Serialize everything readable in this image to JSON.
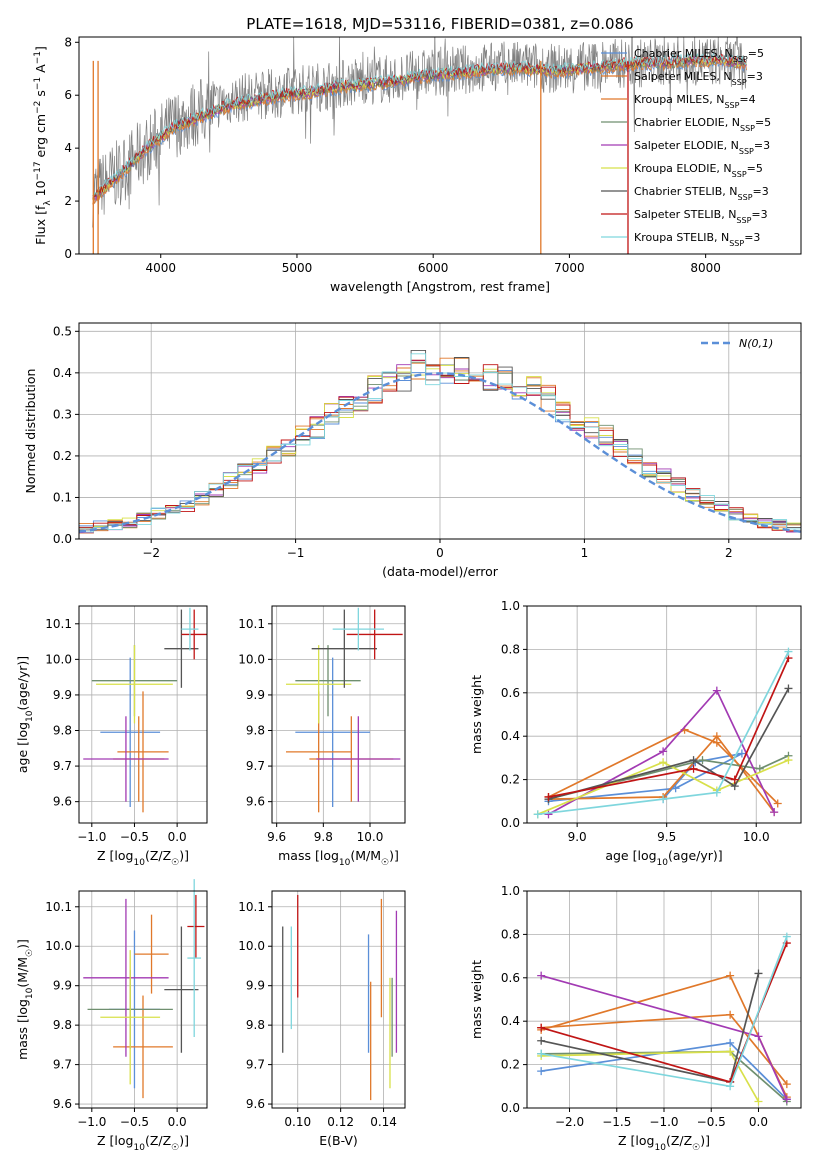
{
  "figure": {
    "title": "PLATE=1618, MJD=53116, FIBERID=0381, z=0.086"
  },
  "models": [
    {
      "name": "Chabrier MILES",
      "nssp": "5",
      "color": "#5b8fd8"
    },
    {
      "name": "Salpeter MILES",
      "nssp": "3",
      "color": "#e0782a"
    },
    {
      "name": "Kroupa MILES",
      "nssp": "4",
      "color": "#e0782a"
    },
    {
      "name": "Chabrier ELODIE",
      "nssp": "5",
      "color": "#6f8f6f"
    },
    {
      "name": "Salpeter ELODIE",
      "nssp": "3",
      "color": "#a23ab3"
    },
    {
      "name": "Kroupa ELODIE",
      "nssp": "5",
      "color": "#d8e04a"
    },
    {
      "name": "Chabrier STELIB",
      "nssp": "3",
      "color": "#555555"
    },
    {
      "name": "Salpeter STELIB",
      "nssp": "3",
      "color": "#c01515"
    },
    {
      "name": "Kroupa STELIB",
      "nssp": "3",
      "color": "#7fd6dd"
    }
  ],
  "chart_data": [
    {
      "id": "spectrum",
      "type": "line",
      "xlabel": "wavelength [Angstrom, rest frame]",
      "ylabel": "Flux [f_λ 10^-17 erg cm^-2 s^-1 A^-1]",
      "xlim": [
        3400,
        8700
      ],
      "ylim": [
        0,
        8.2
      ],
      "xticks": [
        4000,
        5000,
        6000,
        7000,
        8000
      ],
      "yticks": [
        0,
        2,
        4,
        6,
        8
      ],
      "legend": "upper-right",
      "series": [
        {
          "name": "data",
          "color": "#808080",
          "x": [
            3500,
            3700,
            3900,
            4100,
            4300,
            4500,
            4700,
            4900,
            5100,
            5300,
            5500,
            5700,
            5900,
            6100,
            6300,
            6500,
            6700,
            6900,
            7100,
            7300,
            7500,
            7700,
            7900,
            8100,
            8300
          ],
          "y": [
            2.3,
            3.1,
            4.0,
            4.9,
            5.4,
            5.8,
            6.0,
            6.1,
            6.3,
            6.4,
            6.6,
            6.6,
            6.8,
            6.9,
            7.0,
            7.1,
            7.1,
            7.0,
            7.1,
            7.2,
            7.2,
            7.3,
            7.3,
            7.3,
            7.2
          ]
        },
        {
          "name": "model",
          "color": "#7fd6dd",
          "x": [
            3500,
            3700,
            3900,
            4100,
            4300,
            4500,
            4700,
            4900,
            5100,
            5300,
            5500,
            5700,
            5900,
            6100,
            6300,
            6500,
            6700,
            6900,
            7100,
            7300,
            7500,
            7700,
            7900,
            8100,
            8300
          ],
          "y": [
            2.1,
            3.0,
            4.0,
            4.8,
            5.2,
            5.6,
            5.8,
            6.0,
            6.1,
            6.3,
            6.4,
            6.5,
            6.7,
            6.8,
            6.9,
            7.0,
            7.0,
            6.9,
            7.0,
            7.1,
            7.2,
            7.2,
            7.3,
            7.3,
            7.2
          ]
        }
      ]
    },
    {
      "id": "residuals",
      "type": "line",
      "xlabel": "(data-model)/error",
      "ylabel": "Normed distribution",
      "xlim": [
        -2.5,
        2.5
      ],
      "ylim": [
        0,
        0.52
      ],
      "xticks": [
        -2,
        -1,
        0,
        1,
        2
      ],
      "yticks": [
        0.0,
        0.1,
        0.2,
        0.3,
        0.4,
        0.5
      ],
      "legend_label": "N(0,1)",
      "legend": "upper-right",
      "bin_edges": [
        -2.5,
        -2.4,
        -2.3,
        -2.2,
        -2.1,
        -2.0,
        -1.9,
        -1.8,
        -1.7,
        -1.6,
        -1.5,
        -1.4,
        -1.3,
        -1.2,
        -1.1,
        -1.0,
        -0.9,
        -0.8,
        -0.7,
        -0.6,
        -0.5,
        -0.4,
        -0.3,
        -0.2,
        -0.1,
        0.0,
        0.1,
        0.2,
        0.3,
        0.4,
        0.5,
        0.6,
        0.7,
        0.8,
        0.9,
        1.0,
        1.1,
        1.2,
        1.3,
        1.4,
        1.5,
        1.6,
        1.7,
        1.8,
        1.9,
        2.0,
        2.1,
        2.2,
        2.3,
        2.4,
        2.5
      ],
      "hist_base": [
        0.025,
        0.03,
        0.035,
        0.04,
        0.05,
        0.06,
        0.07,
        0.08,
        0.1,
        0.12,
        0.14,
        0.16,
        0.18,
        0.2,
        0.22,
        0.25,
        0.27,
        0.3,
        0.32,
        0.34,
        0.36,
        0.38,
        0.39,
        0.42,
        0.4,
        0.4,
        0.41,
        0.4,
        0.39,
        0.38,
        0.37,
        0.36,
        0.34,
        0.31,
        0.29,
        0.27,
        0.25,
        0.22,
        0.2,
        0.17,
        0.15,
        0.13,
        0.11,
        0.09,
        0.08,
        0.06,
        0.05,
        0.04,
        0.035,
        0.03
      ]
    },
    {
      "id": "age-vs-Z",
      "type": "scatter",
      "xlabel": "Z [log10(Z/Z_sun)]",
      "ylabel": "age [log10(age/yr)]",
      "xlim": [
        -1.15,
        0.35
      ],
      "ylim": [
        9.54,
        10.15
      ],
      "xticks": [
        -1.0,
        -0.5,
        0.0
      ],
      "yticks": [
        9.6,
        9.7,
        9.8,
        9.9,
        10.0,
        10.1
      ],
      "points": [
        {
          "model": 0,
          "x": -0.55,
          "y": 9.795,
          "xerr": 0.35,
          "yerr": 0.21
        },
        {
          "model": 1,
          "x": -0.4,
          "y": 9.74,
          "xerr": 0.3,
          "yerr": 0.17
        },
        {
          "model": 2,
          "x": -0.45,
          "y": 9.72,
          "xerr": 0.3,
          "yerr": 0.12
        },
        {
          "model": 3,
          "x": -0.5,
          "y": 9.94,
          "xerr": 0.5,
          "yerr": 0.1
        },
        {
          "model": 4,
          "x": -0.6,
          "y": 9.72,
          "xerr": 0.5,
          "yerr": 0.12
        },
        {
          "model": 5,
          "x": -0.5,
          "y": 9.93,
          "xerr": 0.45,
          "yerr": 0.11
        },
        {
          "model": 6,
          "x": 0.05,
          "y": 10.03,
          "xerr": 0.2,
          "yerr": 0.11
        },
        {
          "model": 7,
          "x": 0.2,
          "y": 10.07,
          "xerr": 0.15,
          "yerr": 0.07
        },
        {
          "model": 8,
          "x": 0.15,
          "y": 10.085,
          "xerr": 0.1,
          "yerr": 0.06
        }
      ]
    },
    {
      "id": "age-vs-mass",
      "type": "scatter",
      "xlabel": "mass [log10(M/M_sun)]",
      "ylabel": "",
      "xlim": [
        9.58,
        10.15
      ],
      "ylim": [
        9.54,
        10.15
      ],
      "xticks": [
        9.6,
        9.8,
        10.0
      ],
      "yticks": [
        9.6,
        9.7,
        9.8,
        9.9,
        10.0,
        10.1
      ],
      "points": [
        {
          "model": 0,
          "x": 9.84,
          "y": 9.795,
          "xerr": 0.16,
          "yerr": 0.21
        },
        {
          "model": 1,
          "x": 9.78,
          "y": 9.74,
          "xerr": 0.14,
          "yerr": 0.17
        },
        {
          "model": 2,
          "x": 9.92,
          "y": 9.72,
          "xerr": 0.18,
          "yerr": 0.12
        },
        {
          "model": 3,
          "x": 9.82,
          "y": 9.94,
          "xerr": 0.14,
          "yerr": 0.1
        },
        {
          "model": 4,
          "x": 9.95,
          "y": 9.72,
          "xerr": 0.18,
          "yerr": 0.12
        },
        {
          "model": 5,
          "x": 9.78,
          "y": 9.93,
          "xerr": 0.14,
          "yerr": 0.11
        },
        {
          "model": 6,
          "x": 9.89,
          "y": 10.03,
          "xerr": 0.14,
          "yerr": 0.11
        },
        {
          "model": 7,
          "x": 10.02,
          "y": 10.07,
          "xerr": 0.12,
          "yerr": 0.07
        },
        {
          "model": 8,
          "x": 9.95,
          "y": 10.085,
          "xerr": 0.11,
          "yerr": 0.06
        }
      ]
    },
    {
      "id": "weight-vs-age",
      "type": "line",
      "xlabel": "age [log10(age/yr)]",
      "ylabel": "mass weight",
      "xlim": [
        8.72,
        10.25
      ],
      "ylim": [
        0.0,
        1.0
      ],
      "xticks": [
        9.0,
        9.5,
        10.0
      ],
      "yticks": [
        0.0,
        0.2,
        0.4,
        0.6,
        0.8,
        1.0
      ],
      "series": [
        {
          "model": 0,
          "x": [
            8.84,
            9.55,
            9.92,
            9.66,
            9.48
          ],
          "y": [
            0.1,
            0.16,
            0.32,
            0.28,
            0.11
          ]
        },
        {
          "model": 1,
          "x": [
            8.84,
            9.6,
            9.78,
            10.12
          ],
          "y": [
            0.12,
            0.43,
            0.37,
            0.09
          ]
        },
        {
          "model": 2,
          "x": [
            8.84,
            9.48,
            9.78,
            10.1
          ],
          "y": [
            0.11,
            0.12,
            0.4,
            0.05
          ]
        },
        {
          "model": 3,
          "x": [
            8.84,
            9.7,
            10.02,
            10.18
          ],
          "y": [
            0.11,
            0.29,
            0.25,
            0.31
          ]
        },
        {
          "model": 4,
          "x": [
            8.84,
            9.48,
            9.78,
            10.1
          ],
          "y": [
            0.04,
            0.33,
            0.61,
            0.05
          ]
        },
        {
          "model": 5,
          "x": [
            8.78,
            9.48,
            9.78,
            10.18
          ],
          "y": [
            0.04,
            0.28,
            0.15,
            0.29
          ]
        },
        {
          "model": 6,
          "x": [
            8.84,
            9.65,
            9.88,
            10.18
          ],
          "y": [
            0.11,
            0.29,
            0.17,
            0.62
          ]
        },
        {
          "model": 7,
          "x": [
            8.84,
            9.65,
            9.88,
            10.18
          ],
          "y": [
            0.12,
            0.25,
            0.2,
            0.76
          ]
        },
        {
          "model": 8,
          "x": [
            8.78,
            9.48,
            9.78,
            10.18
          ],
          "y": [
            0.04,
            0.11,
            0.14,
            0.79
          ]
        }
      ]
    },
    {
      "id": "mass-vs-Z",
      "type": "scatter",
      "xlabel": "Z [log10(Z/Z_sun)]",
      "ylabel": "mass [log10(M/M_sun)]",
      "xlim": [
        -1.15,
        0.35
      ],
      "ylim": [
        9.59,
        10.14
      ],
      "xticks": [
        -1.0,
        -0.5,
        0.0
      ],
      "yticks": [
        9.6,
        9.7,
        9.8,
        9.9,
        10.0,
        10.1
      ],
      "points": [
        {
          "model": 0,
          "x": -0.5,
          "y": 9.84,
          "xerr": 0.3,
          "yerr": 0.2
        },
        {
          "model": 1,
          "x": -0.4,
          "y": 9.745,
          "xerr": 0.35,
          "yerr": 0.13
        },
        {
          "model": 2,
          "x": -0.3,
          "y": 9.98,
          "xerr": 0.2,
          "yerr": 0.1
        },
        {
          "model": 3,
          "x": -0.55,
          "y": 9.84,
          "xerr": 0.5,
          "yerr": 0.1
        },
        {
          "model": 4,
          "x": -0.6,
          "y": 9.92,
          "xerr": 0.5,
          "yerr": 0.2
        },
        {
          "model": 5,
          "x": -0.55,
          "y": 9.82,
          "xerr": 0.35,
          "yerr": 0.17
        },
        {
          "model": 6,
          "x": 0.05,
          "y": 9.89,
          "xerr": 0.2,
          "yerr": 0.16
        },
        {
          "model": 7,
          "x": 0.22,
          "y": 10.05,
          "xerr": 0.1,
          "yerr": 0.08
        },
        {
          "model": 8,
          "x": 0.2,
          "y": 9.97,
          "xerr": 0.08,
          "yerr": 0.2
        }
      ]
    },
    {
      "id": "mass-vs-ebv",
      "type": "scatter",
      "xlabel": "E(B-V)",
      "ylabel": "",
      "xlim": [
        0.088,
        0.15
      ],
      "ylim": [
        9.59,
        10.14
      ],
      "xticks": [
        0.1,
        0.12,
        0.14
      ],
      "yticks": [
        9.6,
        9.7,
        9.8,
        9.9,
        10.0,
        10.1
      ],
      "points": [
        {
          "model": 0,
          "x": 0.133,
          "y": 9.88,
          "xerr": 0,
          "yerr": 0.15
        },
        {
          "model": 1,
          "x": 0.134,
          "y": 9.76,
          "xerr": 0,
          "yerr": 0.15
        },
        {
          "model": 2,
          "x": 0.139,
          "y": 9.97,
          "xerr": 0,
          "yerr": 0.15
        },
        {
          "model": 3,
          "x": 0.144,
          "y": 9.82,
          "xerr": 0,
          "yerr": 0.1
        },
        {
          "model": 4,
          "x": 0.146,
          "y": 9.91,
          "xerr": 0,
          "yerr": 0.18
        },
        {
          "model": 5,
          "x": 0.143,
          "y": 9.78,
          "xerr": 0,
          "yerr": 0.14
        },
        {
          "model": 6,
          "x": 0.093,
          "y": 9.89,
          "xerr": 0,
          "yerr": 0.16
        },
        {
          "model": 7,
          "x": 0.1,
          "y": 10.0,
          "xerr": 0,
          "yerr": 0.13
        },
        {
          "model": 8,
          "x": 0.097,
          "y": 9.92,
          "xerr": 0,
          "yerr": 0.13
        }
      ]
    },
    {
      "id": "weight-vs-Z",
      "type": "line",
      "xlabel": "Z [log10(Z/Z_sun)]",
      "ylabel": "mass weight",
      "xlim": [
        -2.45,
        0.45
      ],
      "ylim": [
        0.0,
        1.0
      ],
      "xticks": [
        -2.0,
        -1.5,
        -1.0,
        -0.5,
        0.0
      ],
      "yticks": [
        0.0,
        0.2,
        0.4,
        0.6,
        0.8,
        1.0
      ],
      "series": [
        {
          "model": 0,
          "x": [
            -2.3,
            -0.3,
            0.3
          ],
          "y": [
            0.17,
            0.3,
            0.04
          ]
        },
        {
          "model": 1,
          "x": [
            -2.3,
            -0.3,
            0.3
          ],
          "y": [
            0.37,
            0.43,
            0.11
          ]
        },
        {
          "model": 2,
          "x": [
            -2.3,
            -0.3,
            0.3
          ],
          "y": [
            0.36,
            0.61,
            0.05
          ]
        },
        {
          "model": 3,
          "x": [
            -2.3,
            -0.3,
            0.3
          ],
          "y": [
            0.25,
            0.26,
            0.03
          ]
        },
        {
          "model": 4,
          "x": [
            -2.3,
            0.0,
            0.3
          ],
          "y": [
            0.61,
            0.33,
            0.04
          ]
        },
        {
          "model": 5,
          "x": [
            -2.3,
            -0.3,
            0.0
          ],
          "y": [
            0.24,
            0.26,
            0.03
          ]
        },
        {
          "model": 6,
          "x": [
            -2.3,
            -0.3,
            0.0
          ],
          "y": [
            0.31,
            0.12,
            0.62
          ]
        },
        {
          "model": 7,
          "x": [
            -2.3,
            -0.3,
            0.3
          ],
          "y": [
            0.37,
            0.12,
            0.76
          ]
        },
        {
          "model": 8,
          "x": [
            -2.3,
            -0.3,
            0.3
          ],
          "y": [
            0.25,
            0.1,
            0.79
          ]
        }
      ]
    }
  ]
}
